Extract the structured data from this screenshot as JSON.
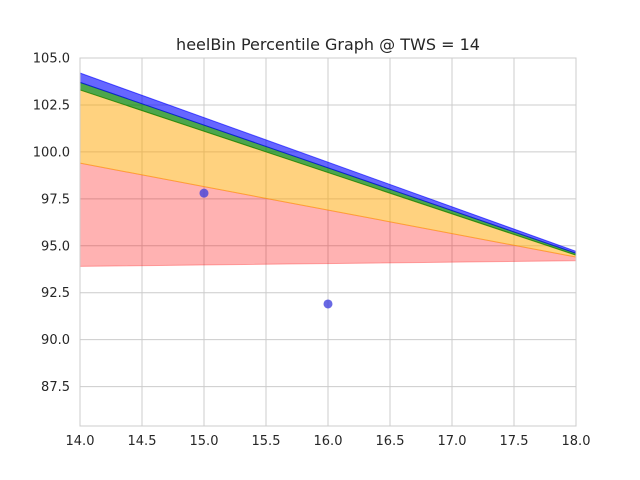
{
  "chart_data": {
    "type": "area",
    "title": "heelBin Percentile Graph @ TWS = 14",
    "xlabel": "",
    "ylabel": "",
    "xlim": [
      14.0,
      18.0
    ],
    "ylim": [
      85.4,
      105.0
    ],
    "x_ticks": [
      14.0,
      14.5,
      15.0,
      15.5,
      16.0,
      16.5,
      17.0,
      17.5,
      18.0
    ],
    "x_tick_labels": [
      "14.0",
      "14.5",
      "15.0",
      "15.5",
      "16.0",
      "16.5",
      "17.0",
      "17.5",
      "18.0"
    ],
    "y_ticks": [
      87.5,
      90.0,
      92.5,
      95.0,
      97.5,
      100.0,
      102.5,
      105.0
    ],
    "y_tick_labels": [
      "87.5",
      "90.0",
      "92.5",
      "95.0",
      "97.5",
      "100.0",
      "102.5",
      "105.0"
    ],
    "grid": true,
    "x": [
      14.0,
      18.0
    ],
    "bands": [
      {
        "name": "red band",
        "color": "#ff0000",
        "alpha": 0.3,
        "lower": [
          93.9,
          94.2
        ],
        "upper": [
          99.4,
          94.4
        ]
      },
      {
        "name": "orange band",
        "color": "#ffa500",
        "alpha": 0.5,
        "lower": [
          99.4,
          94.4
        ],
        "upper": [
          103.3,
          94.5
        ]
      },
      {
        "name": "green band",
        "color": "#008000",
        "alpha": 0.7,
        "lower": [
          103.3,
          94.5
        ],
        "upper": [
          103.7,
          94.6
        ]
      },
      {
        "name": "blue band",
        "color": "#0000ff",
        "alpha": 0.6,
        "lower": [
          103.7,
          94.6
        ],
        "upper": [
          104.2,
          94.7
        ]
      }
    ],
    "points": {
      "color": "#4444dd",
      "x": [
        15.0,
        16.0
      ],
      "y": [
        97.8,
        91.9
      ]
    }
  }
}
